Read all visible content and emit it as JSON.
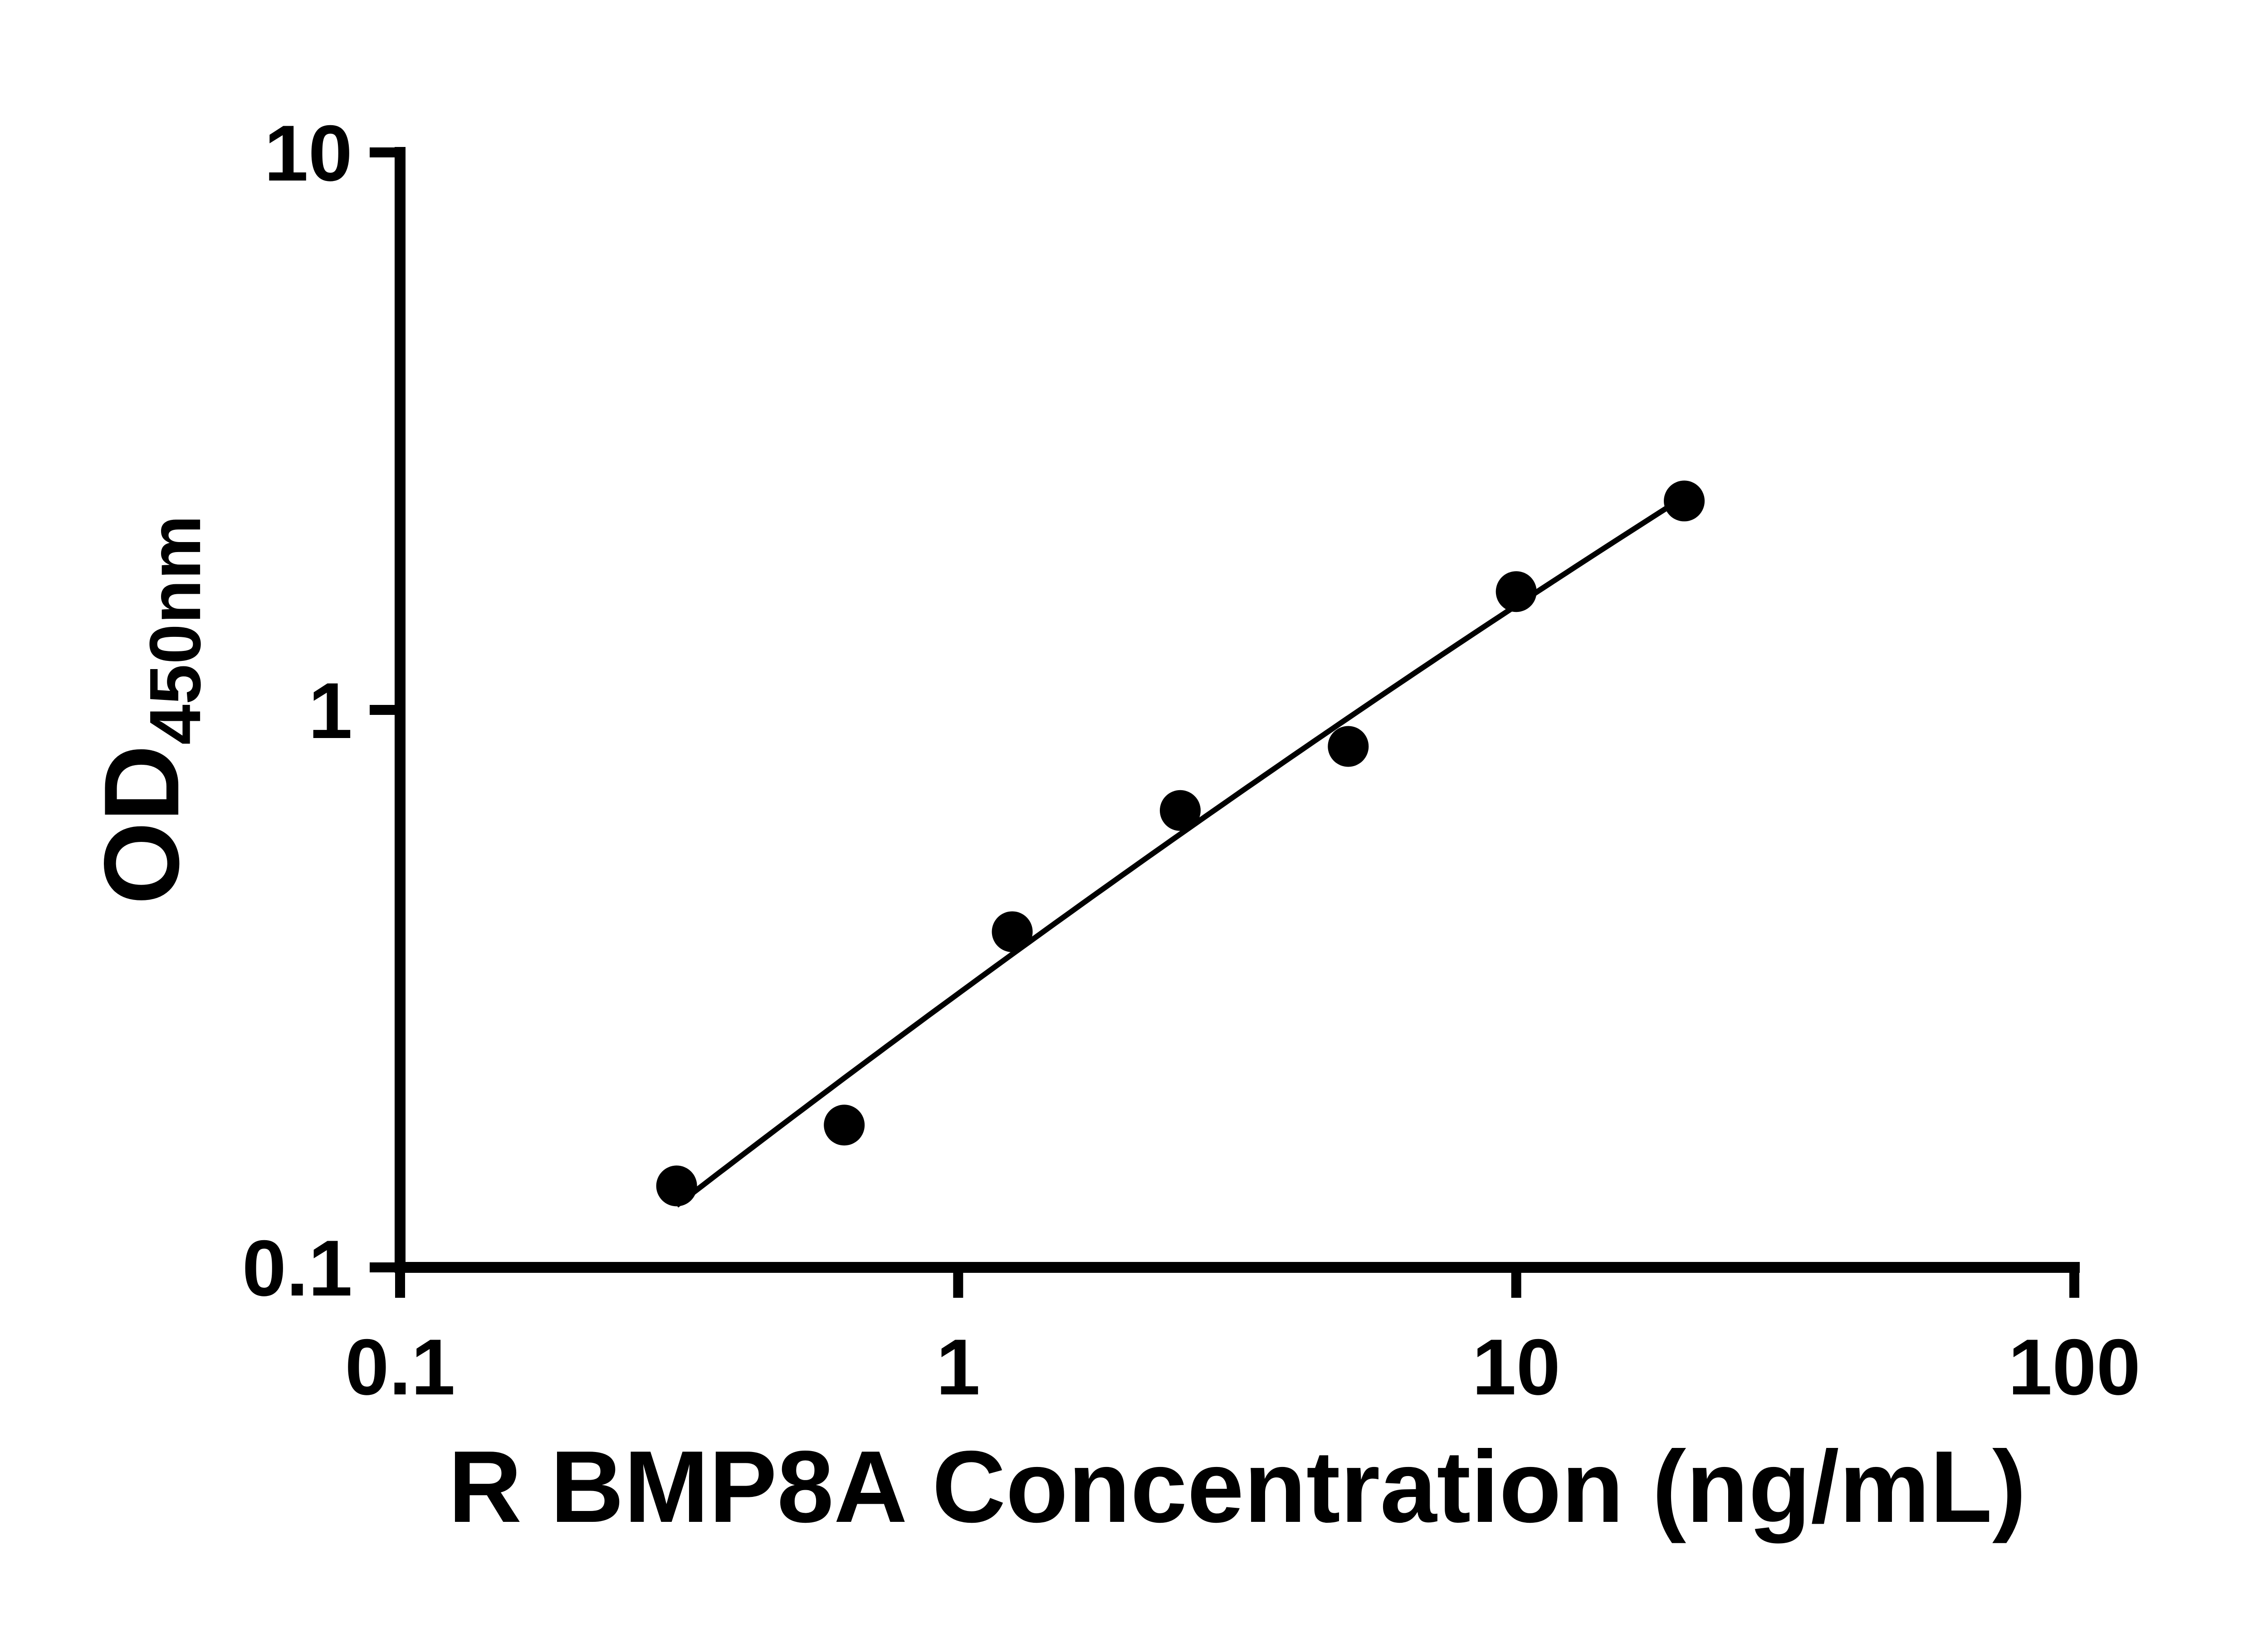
{
  "figure": {
    "background": "#ffffff"
  },
  "colors": {
    "axes": "#000000",
    "text": "#000000",
    "marker": "#000000",
    "line": "#000000"
  },
  "chart_data": {
    "type": "scatter",
    "title": "",
    "xlabel": "R BMP8A Concentration (ng/mL)",
    "ylabel": "OD",
    "ylabel_subscript": "450nm",
    "x_scale": "log",
    "y_scale": "log",
    "xlim": [
      0.1,
      100
    ],
    "ylim": [
      0.1,
      10
    ],
    "x_ticks": [
      "0.1",
      "1",
      "10",
      "100"
    ],
    "y_ticks": [
      "0.1",
      "1",
      "10"
    ],
    "grid": false,
    "legend": false,
    "marker": {
      "shape": "circle",
      "color": "#000000"
    },
    "line_color": "#000000",
    "has_fit_curve": true,
    "series": [
      {
        "x": [
          0.313,
          0.625,
          1.25,
          2.5,
          5,
          10,
          20
        ],
        "y": [
          0.14,
          0.18,
          0.4,
          0.66,
          0.86,
          1.63,
          2.37
        ]
      }
    ]
  }
}
